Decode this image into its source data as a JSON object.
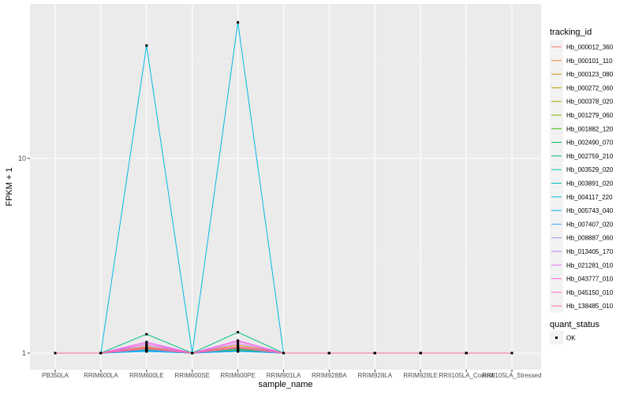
{
  "chart_data": {
    "type": "line",
    "xlabel": "sample_name",
    "ylabel": "FPKM + 1",
    "y_scale": "log10",
    "ylim": [
      0.95,
      70
    ],
    "y_ticks": [
      1,
      10
    ],
    "y_tick_labels": [
      "1",
      "10"
    ],
    "categories": [
      "PB350LA",
      "RRIM600LA",
      "RRIM600LE",
      "RRIM600SE",
      "RRIM600PE",
      "RRIM901LA",
      "RRIM928BA",
      "RRIM928LA",
      "RRIM928LE",
      "RRII105LA_Control",
      "RRII105LA_Stressed"
    ],
    "legend_position": "right",
    "grid": true,
    "legend_tracking": {
      "title": "tracking_id",
      "entries": [
        "Hb_000012_360",
        "Hb_000101_110",
        "Hb_000123_080",
        "Hb_000272_060",
        "Hb_000378_020",
        "Hb_001279_060",
        "Hb_001882_120",
        "Hb_002490_070",
        "Hb_002759_210",
        "Hb_003529_020",
        "Hb_003891_020",
        "Hb_004117_220",
        "Hb_005743_040",
        "Hb_007407_020",
        "Hb_008887_060",
        "Hb_013405_170",
        "Hb_021281_010",
        "Hb_043777_010",
        "Hb_045150_010",
        "Hb_138485_010"
      ]
    },
    "legend_status": {
      "title": "quant_status",
      "entries": [
        "OK"
      ]
    },
    "series": [
      {
        "name": "Hb_000012_360",
        "color": "#F8766D",
        "values": [
          1,
          1,
          1.04,
          1,
          1.05,
          1,
          1,
          1,
          1,
          1,
          1
        ]
      },
      {
        "name": "Hb_000101_110",
        "color": "#EA8331",
        "values": [
          1,
          1,
          1.06,
          1,
          1.07,
          1,
          1,
          1,
          1,
          1,
          1
        ]
      },
      {
        "name": "Hb_000123_080",
        "color": "#D89000",
        "values": [
          1,
          1,
          1.08,
          1,
          1.1,
          1,
          1,
          1,
          1,
          1,
          1
        ]
      },
      {
        "name": "Hb_000272_060",
        "color": "#C09B00",
        "values": [
          1,
          1,
          1.05,
          1,
          1.06,
          1,
          1,
          1,
          1,
          1,
          1
        ]
      },
      {
        "name": "Hb_000378_020",
        "color": "#A3A500",
        "values": [
          1,
          1,
          1.03,
          1,
          1.04,
          1,
          1,
          1,
          1,
          1,
          1
        ]
      },
      {
        "name": "Hb_001279_060",
        "color": "#7CAE00",
        "values": [
          1,
          1,
          1.04,
          1,
          1.05,
          1,
          1,
          1,
          1,
          1,
          1
        ]
      },
      {
        "name": "Hb_001882_120",
        "color": "#39B600",
        "values": [
          1,
          1,
          1.03,
          1,
          1.03,
          1,
          1,
          1,
          1,
          1,
          1
        ]
      },
      {
        "name": "Hb_002490_070",
        "color": "#00BB4E",
        "values": [
          1,
          1,
          1.05,
          1,
          1.06,
          1,
          1,
          1,
          1,
          1,
          1
        ]
      },
      {
        "name": "Hb_002759_210",
        "color": "#00BF7D",
        "values": [
          1,
          1,
          1.25,
          1,
          1.28,
          1,
          1,
          1,
          1,
          1,
          1
        ]
      },
      {
        "name": "Hb_003529_020",
        "color": "#00C1A3",
        "values": [
          1,
          1,
          1.04,
          1,
          1.05,
          1,
          1,
          1,
          1,
          1,
          1
        ]
      },
      {
        "name": "Hb_003891_020",
        "color": "#00BFC4",
        "values": [
          1,
          1,
          1.02,
          1,
          1.03,
          1,
          1,
          1,
          1,
          1,
          1
        ]
      },
      {
        "name": "Hb_004117_220",
        "color": "#00BAE0",
        "values": [
          1,
          1,
          38,
          1,
          50,
          1,
          1,
          1,
          1,
          1,
          1
        ]
      },
      {
        "name": "Hb_005743_040",
        "color": "#00B0F6",
        "values": [
          1,
          1,
          1.02,
          1,
          1.02,
          1,
          1,
          1,
          1,
          1,
          1
        ]
      },
      {
        "name": "Hb_007407_020",
        "color": "#35A2FF",
        "values": [
          1,
          1,
          1.03,
          1,
          1.02,
          1,
          1,
          1,
          1,
          1,
          1
        ]
      },
      {
        "name": "Hb_008887_060",
        "color": "#9590FF",
        "values": [
          1,
          1,
          1.05,
          1,
          1.06,
          1,
          1,
          1,
          1,
          1,
          1
        ]
      },
      {
        "name": "Hb_013405_170",
        "color": "#C77CFF",
        "values": [
          1,
          1,
          1.1,
          1,
          1.12,
          1,
          1,
          1,
          1,
          1,
          1
        ]
      },
      {
        "name": "Hb_021281_010",
        "color": "#E76BF3",
        "values": [
          1,
          1,
          1.14,
          1,
          1.16,
          1,
          1,
          1,
          1,
          1,
          1
        ]
      },
      {
        "name": "Hb_043777_010",
        "color": "#FA62DB",
        "values": [
          1,
          1,
          1.12,
          1,
          1.15,
          1,
          1,
          1,
          1,
          1,
          1
        ]
      },
      {
        "name": "Hb_045150_010",
        "color": "#FF62BC",
        "values": [
          1,
          1,
          1.07,
          1,
          1.08,
          1,
          1,
          1,
          1,
          1,
          1
        ]
      },
      {
        "name": "Hb_138485_010",
        "color": "#FF6C91",
        "values": [
          1,
          1,
          1.05,
          1,
          1.06,
          1,
          1,
          1,
          1,
          1,
          1
        ]
      }
    ]
  }
}
